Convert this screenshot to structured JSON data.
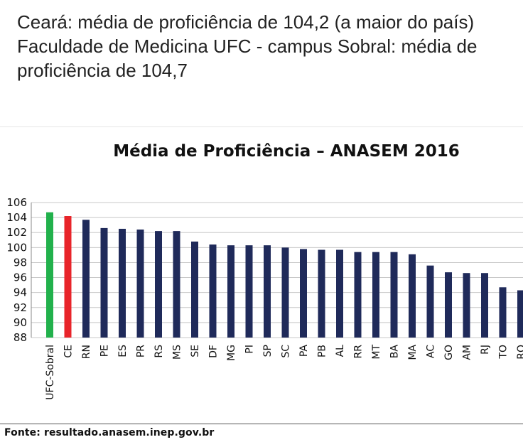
{
  "post": {
    "line1": "Ceará: média de proficiência de 104,2 (a maior do país)",
    "line2": "Faculdade de Medicina UFC - campus Sobral: média de proficiência de 104,7"
  },
  "source": "Fonte: resultado.anasem.inep.gov.br",
  "colors": {
    "default": "#1f2a5a",
    "highlight_green": "#22b14c",
    "highlight_red": "#e8242a",
    "grid": "#c8c8c8",
    "axis": "#8a8a8a"
  },
  "chart_data": {
    "type": "bar",
    "title": "Média de Proficiência – ANASEM 2016",
    "xlabel": "",
    "ylabel": "",
    "ylim": [
      88,
      106
    ],
    "yticks": [
      88,
      90,
      92,
      94,
      96,
      98,
      100,
      102,
      104,
      106
    ],
    "grid": true,
    "categories": [
      "UFC-Sobral",
      "CE",
      "RN",
      "PE",
      "ES",
      "PR",
      "RS",
      "MS",
      "SE",
      "DF",
      "MG",
      "PI",
      "SP",
      "SC",
      "PA",
      "PB",
      "AL",
      "RR",
      "MT",
      "BA",
      "MA",
      "AC",
      "GO",
      "AM",
      "RJ",
      "TO",
      "RO"
    ],
    "values": [
      104.7,
      104.2,
      103.7,
      102.6,
      102.5,
      102.4,
      102.2,
      102.2,
      100.8,
      100.4,
      100.3,
      100.3,
      100.3,
      100.0,
      99.8,
      99.7,
      99.7,
      99.4,
      99.4,
      99.4,
      99.1,
      97.6,
      96.7,
      96.6,
      96.6,
      94.7,
      94.3
    ],
    "bar_colors": [
      "#22b14c",
      "#e8242a",
      "#1f2a5a",
      "#1f2a5a",
      "#1f2a5a",
      "#1f2a5a",
      "#1f2a5a",
      "#1f2a5a",
      "#1f2a5a",
      "#1f2a5a",
      "#1f2a5a",
      "#1f2a5a",
      "#1f2a5a",
      "#1f2a5a",
      "#1f2a5a",
      "#1f2a5a",
      "#1f2a5a",
      "#1f2a5a",
      "#1f2a5a",
      "#1f2a5a",
      "#1f2a5a",
      "#1f2a5a",
      "#1f2a5a",
      "#1f2a5a",
      "#1f2a5a",
      "#1f2a5a",
      "#1f2a5a"
    ]
  }
}
